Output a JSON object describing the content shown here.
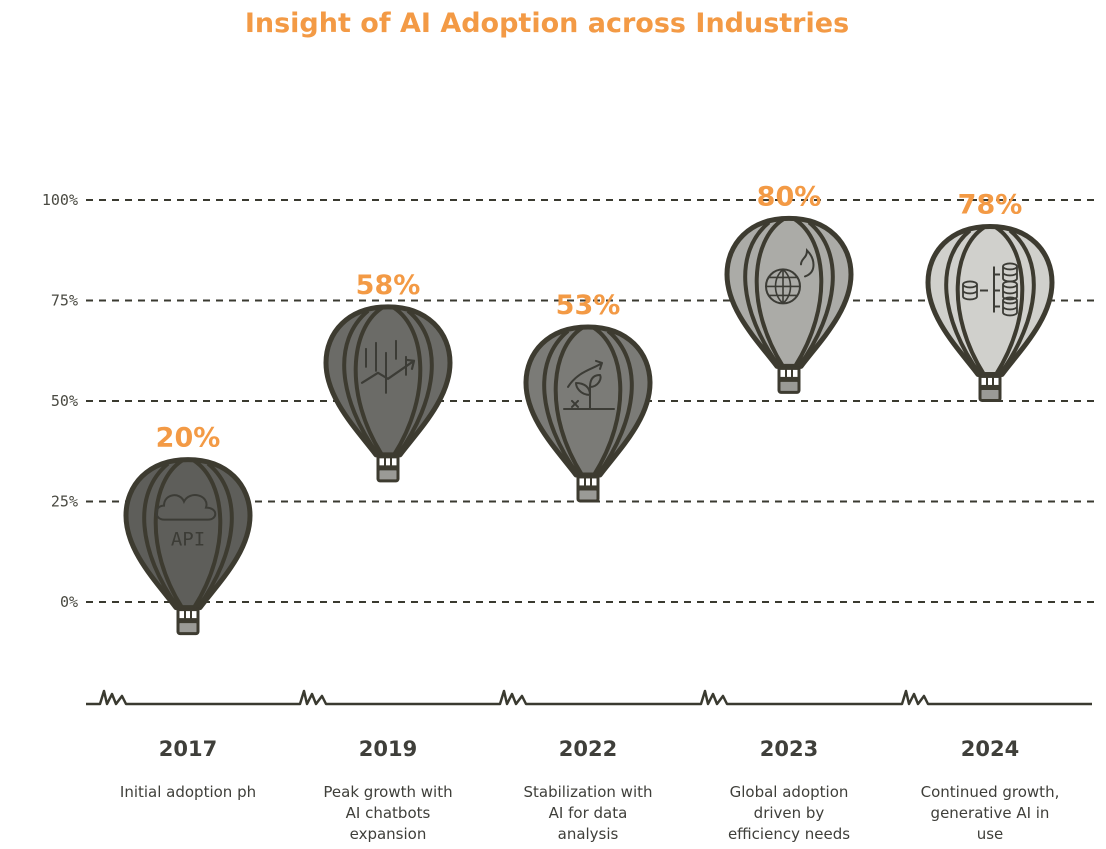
{
  "chart_data": {
    "type": "pictorial-scatter",
    "title": "Insight of AI Adoption across Industries",
    "ylim": [
      0,
      100
    ],
    "yticks": [
      {
        "value": 100,
        "label": "100%"
      },
      {
        "value": 75,
        "label": "75%"
      },
      {
        "value": 50,
        "label": "50%"
      },
      {
        "value": 25,
        "label": "25%"
      },
      {
        "value": 0,
        "label": "0%"
      }
    ],
    "points": [
      {
        "year": "2017",
        "value": 20,
        "label": "20%",
        "desc": [
          "Initial adoption ph"
        ],
        "icon": "cloud-api-icon",
        "color": "#5e5e5a"
      },
      {
        "year": "2019",
        "value": 58,
        "label": "58%",
        "desc": [
          "Peak growth with",
          "AI chatbots",
          "expansion"
        ],
        "icon": "rising-chart-icon",
        "color": "#6b6b67"
      },
      {
        "year": "2022",
        "value": 53,
        "label": "53%",
        "desc": [
          "Stabilization with",
          "AI for data",
          "analysis"
        ],
        "icon": "growing-plant-icon",
        "color": "#7b7b77"
      },
      {
        "year": "2023",
        "value": 80,
        "label": "80%",
        "desc": [
          "Global adoption",
          "driven by",
          "efficiency needs"
        ],
        "icon": "globe-flame-icon",
        "color": "#ababa7"
      },
      {
        "year": "2024",
        "value": 78,
        "label": "78%",
        "desc": [
          "Continued growth,",
          "generative AI in",
          "use"
        ],
        "icon": "database-network-icon",
        "color": "#d0d0cc"
      }
    ]
  }
}
